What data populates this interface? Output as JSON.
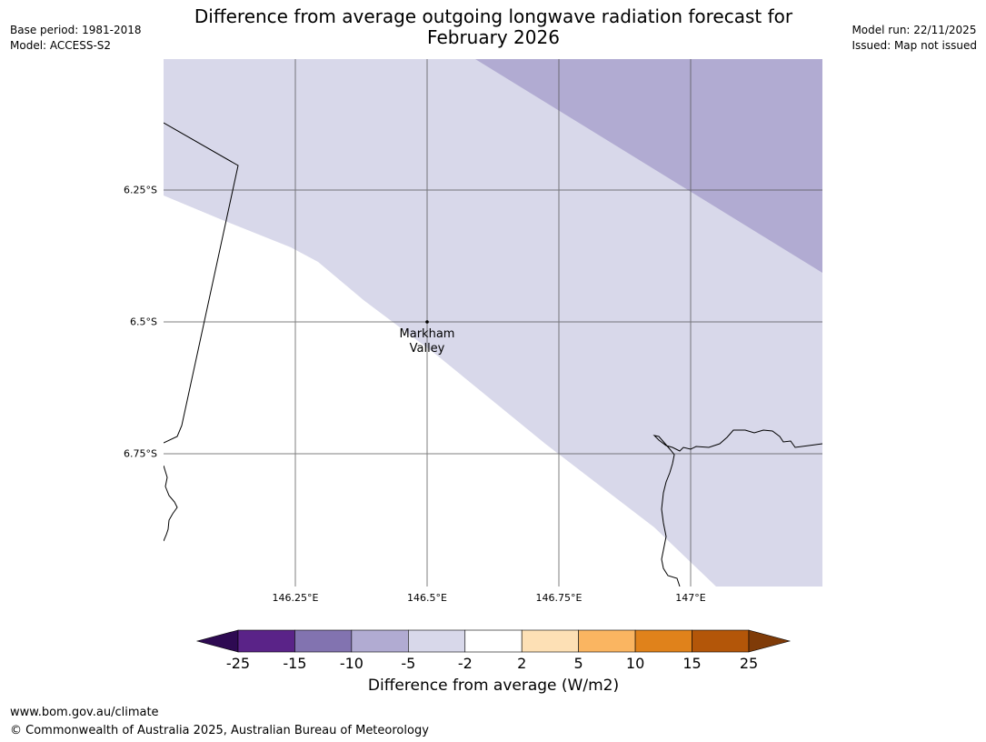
{
  "header": {
    "base_period": "Base period: 1981-2018",
    "model": "Model: ACCESS-S2",
    "title_line1": "Difference from average outgoing longwave radiation forecast for",
    "title_line2": "February 2026",
    "model_run": "Model run: 22/11/2025",
    "issued": "Issued: Map not issued"
  },
  "map": {
    "place_line1": "Markham",
    "place_line2": "Valley",
    "lat_ticks": [
      "6.25°S",
      "6.5°S",
      "6.75°S"
    ],
    "lon_ticks": [
      "146.25°E",
      "146.5°E",
      "146.75°E",
      "147°E"
    ],
    "colors": {
      "band_neg5_neg2": "#d8d8ea",
      "band_neg10_neg5": "#b1abd2",
      "gridline": "#555555",
      "coastline": "#000000"
    }
  },
  "colorbar": {
    "title": "Difference from average (W/m2)",
    "boundaries": [
      "-25",
      "-15",
      "-10",
      "-5",
      "-2",
      "2",
      "5",
      "10",
      "15",
      "25"
    ],
    "colors": [
      "#2e0a52",
      "#5a2388",
      "#8273b0",
      "#b1abd2",
      "#d8d8ea",
      "#ffffff",
      "#fde0b5",
      "#fab561",
      "#e0821b",
      "#b35609",
      "#7f3b08"
    ]
  },
  "footer": {
    "website": "www.bom.gov.au/climate",
    "copyright": "© Commonwealth of Australia 2025, Australian Bureau of Meteorology"
  }
}
